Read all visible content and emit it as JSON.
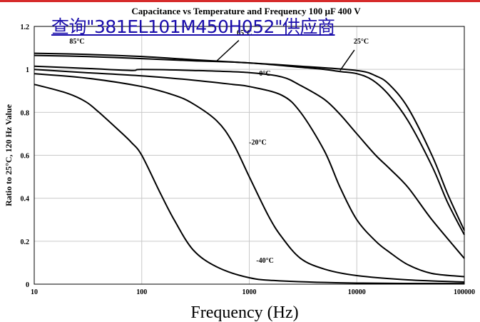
{
  "link_text": "查询\"381EL101M450H052\"供应商",
  "chart_data": {
    "type": "line",
    "title": "Capacitance vs Temperature and Frequency 100 µF 400 V",
    "xlabel": "Frequency (Hz)",
    "ylabel": "Ratio to 25°C, 120 Hz Value",
    "x_scale": "log",
    "xlim": [
      10,
      100000
    ],
    "ylim": [
      0,
      1.2
    ],
    "x_ticks": [
      "10",
      "100",
      "1000",
      "10000",
      "100000"
    ],
    "y_ticks": [
      "0",
      "0.2",
      "0.4",
      "0.6",
      "0.8",
      "1",
      "1.2"
    ],
    "grid": true,
    "series": [
      {
        "name": "85°C",
        "x": [
          10,
          30,
          100,
          300,
          1000,
          3000,
          10000,
          15000,
          20000,
          30000,
          50000,
          70000,
          100000
        ],
        "y": [
          1.075,
          1.07,
          1.06,
          1.045,
          1.03,
          1.015,
          0.995,
          0.97,
          0.93,
          0.82,
          0.6,
          0.42,
          0.25
        ]
      },
      {
        "name": "65°C",
        "x": [
          10,
          30,
          100,
          300,
          1000,
          3000,
          5000,
          7000,
          10000,
          14000,
          20000,
          30000,
          50000,
          70000,
          100000
        ],
        "y": [
          1.065,
          1.06,
          1.05,
          1.04,
          1.03,
          1.01,
          1.0,
          0.99,
          0.98,
          0.95,
          0.88,
          0.76,
          0.55,
          0.38,
          0.23
        ]
      },
      {
        "name": "25°C",
        "x": [
          10,
          30,
          80,
          100,
          300,
          1000,
          2000,
          3000,
          5000,
          7000,
          10000,
          15000,
          20000,
          30000,
          50000,
          100000
        ],
        "y": [
          1.015,
          1.005,
          0.995,
          1.0,
          0.995,
          0.985,
          0.965,
          0.925,
          0.86,
          0.79,
          0.7,
          0.6,
          0.54,
          0.45,
          0.3,
          0.12
        ]
      },
      {
        "name": "0°C",
        "x": [
          10,
          30,
          100,
          300,
          700,
          1000,
          2000,
          3000,
          5000,
          7000,
          10000,
          15000,
          20000,
          30000,
          50000,
          100000
        ],
        "y": [
          1.0,
          0.985,
          0.97,
          0.95,
          0.93,
          0.92,
          0.88,
          0.8,
          0.62,
          0.45,
          0.3,
          0.2,
          0.15,
          0.09,
          0.05,
          0.035
        ]
      },
      {
        "name": "-20°C",
        "x": [
          10,
          30,
          100,
          200,
          300,
          500,
          700,
          1000,
          1500,
          2000,
          3000,
          5000,
          10000,
          30000,
          100000
        ],
        "y": [
          0.98,
          0.96,
          0.92,
          0.88,
          0.84,
          0.76,
          0.66,
          0.5,
          0.32,
          0.22,
          0.12,
          0.07,
          0.04,
          0.02,
          0.01
        ]
      },
      {
        "name": "-40°C",
        "x": [
          10,
          20,
          30,
          40,
          60,
          80,
          100,
          150,
          200,
          300,
          500,
          1000,
          2000,
          10000,
          100000
        ],
        "y": [
          0.93,
          0.89,
          0.85,
          0.8,
          0.72,
          0.66,
          0.6,
          0.42,
          0.3,
          0.16,
          0.08,
          0.03,
          0.015,
          0.005,
          0.003
        ]
      }
    ],
    "annotations": [
      "85°C",
      "65°C",
      "25°C",
      "0°C",
      "-20°C",
      "-40°C"
    ]
  }
}
